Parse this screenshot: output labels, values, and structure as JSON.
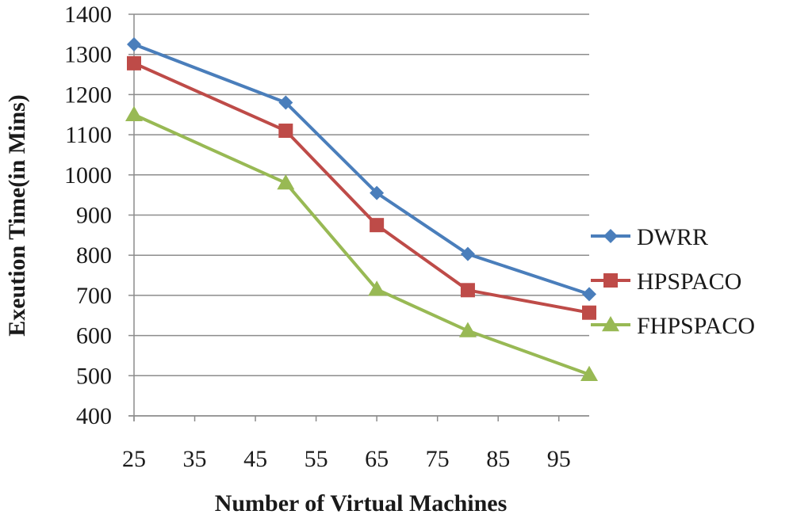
{
  "chart_data": {
    "type": "line",
    "title": "",
    "xlabel": "Number of Virtual Machines",
    "ylabel": "Exeution Time(in Mins)",
    "xlim": [
      25,
      100
    ],
    "ylim": [
      400,
      1400
    ],
    "x_ticks": [
      25,
      35,
      45,
      55,
      65,
      75,
      85,
      95
    ],
    "y_ticks": [
      400,
      500,
      600,
      700,
      800,
      900,
      1000,
      1100,
      1200,
      1300,
      1400
    ],
    "grid": "horizontal",
    "legend_position": "right",
    "x": [
      25,
      50,
      65,
      80,
      100
    ],
    "series": [
      {
        "name": "DWRR",
        "values": [
          1325,
          1180,
          955,
          803,
          703
        ],
        "color": "#4a7ebb",
        "marker": "diamond"
      },
      {
        "name": "HPSPACO",
        "values": [
          1278,
          1110,
          875,
          713,
          657
        ],
        "color": "#be4b48",
        "marker": "square"
      },
      {
        "name": "FHPSPACO",
        "values": [
          1150,
          980,
          715,
          612,
          503
        ],
        "color": "#98b954",
        "marker": "triangle"
      }
    ]
  }
}
